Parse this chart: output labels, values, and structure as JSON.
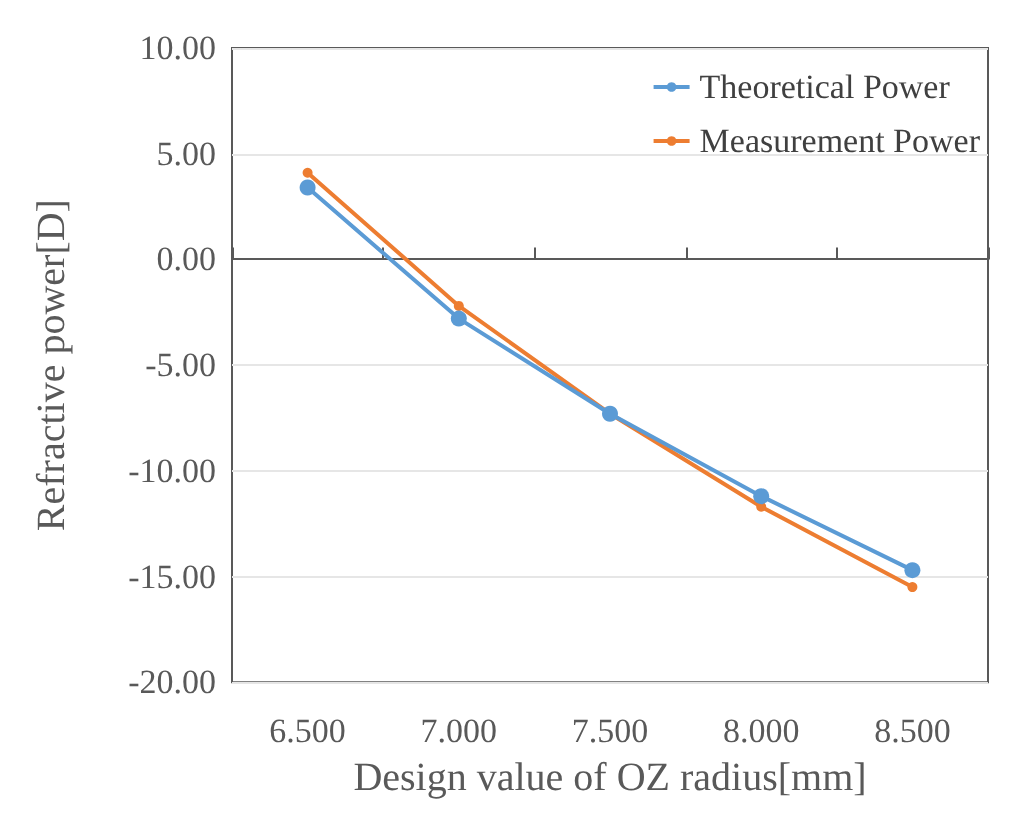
{
  "chart_data": {
    "type": "line",
    "xlabel": "Design value of OZ radius[mm]",
    "ylabel": "Refractive power[D]",
    "categories": [
      "6.500",
      "7.000",
      "7.500",
      "8.000",
      "8.500"
    ],
    "series": [
      {
        "name": "Theoretical Power",
        "color": "#5b9bd5",
        "values": [
          3.4,
          -2.8,
          -7.3,
          -11.2,
          -14.7
        ]
      },
      {
        "name": "Measurement Power",
        "color": "#ed7d31",
        "values": [
          4.1,
          -2.2,
          -7.3,
          -11.7,
          -15.5
        ]
      }
    ],
    "ylim": [
      -20,
      10
    ],
    "yticks": [
      {
        "value": -20,
        "label": "-20.00"
      },
      {
        "value": -15,
        "label": "-15.00"
      },
      {
        "value": -10,
        "label": "-10.00"
      },
      {
        "value": -5,
        "label": "-5.00"
      },
      {
        "value": 0,
        "label": "0.00"
      },
      {
        "value": 5,
        "label": "5.00"
      },
      {
        "value": 10,
        "label": "10.00"
      }
    ],
    "grid": "y",
    "legend": "top right",
    "marker": "circle",
    "line_style": "solid"
  }
}
